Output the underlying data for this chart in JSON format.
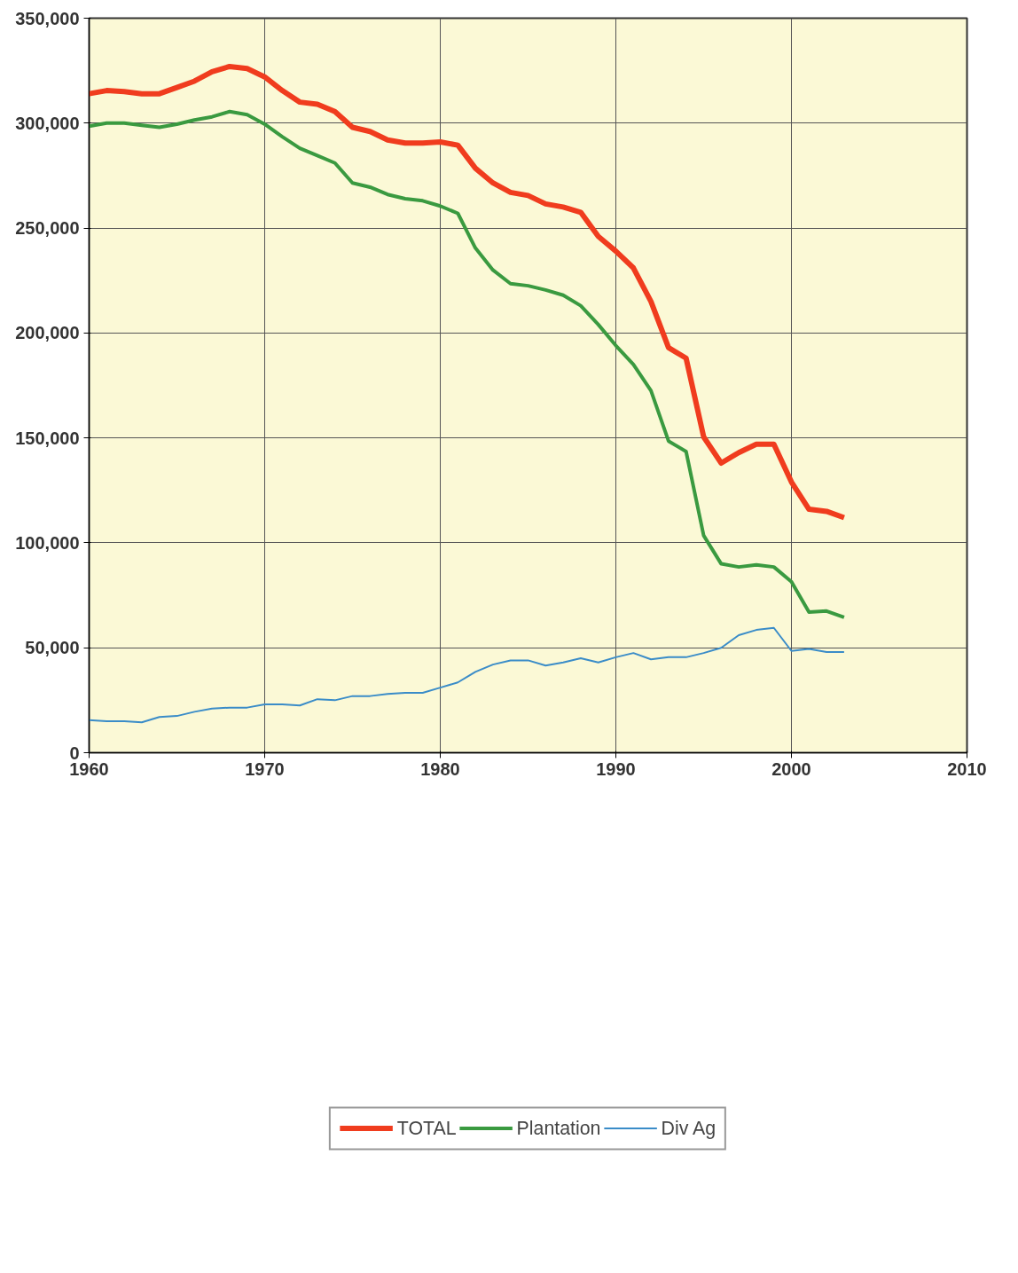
{
  "chart_data": {
    "type": "line",
    "x": [
      1960,
      1961,
      1962,
      1963,
      1964,
      1965,
      1966,
      1967,
      1968,
      1969,
      1970,
      1971,
      1972,
      1973,
      1974,
      1975,
      1976,
      1977,
      1978,
      1979,
      1980,
      1981,
      1982,
      1983,
      1984,
      1985,
      1986,
      1987,
      1988,
      1989,
      1990,
      1991,
      1992,
      1993,
      1994,
      1995,
      1996,
      1997,
      1998,
      1999,
      2000,
      2001,
      2002,
      2003
    ],
    "series": [
      {
        "name": "TOTAL",
        "color": "#f03c1e",
        "values": [
          314000,
          315500,
          315000,
          314000,
          314000,
          317000,
          320000,
          324500,
          327000,
          326000,
          322000,
          315500,
          310000,
          309000,
          305500,
          298000,
          296000,
          292000,
          290500,
          290500,
          291000,
          289500,
          278500,
          271500,
          267000,
          265500,
          261500,
          260000,
          257500,
          246000,
          239000,
          231000,
          215000,
          193000,
          188000,
          150500,
          138000,
          143000,
          147000,
          147000,
          129000,
          116000,
          115000,
          112000
        ]
      },
      {
        "name": "Plantation",
        "color": "#3a9a40",
        "values": [
          298500,
          300000,
          300000,
          299000,
          298000,
          299500,
          301500,
          303000,
          305500,
          304000,
          299500,
          293500,
          288000,
          284500,
          281000,
          271500,
          269500,
          266000,
          264000,
          263000,
          260500,
          257000,
          240500,
          230000,
          223500,
          222500,
          220500,
          218000,
          213000,
          204000,
          194000,
          185000,
          172500,
          148500,
          143500,
          103500,
          90000,
          88500,
          89500,
          88500,
          81500,
          67000,
          67500,
          64500
        ]
      },
      {
        "name": "Div Ag",
        "color": "#3a8cc8",
        "values": [
          15500,
          15000,
          15000,
          14500,
          17000,
          17500,
          19500,
          21000,
          21500,
          21500,
          23000,
          23000,
          22500,
          25500,
          25000,
          27000,
          27000,
          28000,
          28500,
          28500,
          31000,
          33500,
          38500,
          42000,
          44000,
          44000,
          41500,
          43000,
          45000,
          43000,
          45500,
          47500,
          44500,
          45500,
          45500,
          47500,
          50000,
          56000,
          58500,
          59500,
          48500,
          49500,
          48000,
          48000
        ]
      }
    ],
    "xlim": [
      1960,
      2010
    ],
    "xticks": [
      1960,
      1970,
      1980,
      1990,
      2000,
      2010
    ],
    "ylim": [
      0,
      350000
    ],
    "yticks": [
      0,
      {
        "value": 50000,
        "label": "50,000"
      },
      {
        "value": 100000,
        "label": "100,000"
      },
      {
        "value": 150000,
        "label": "150,000"
      },
      {
        "value": 200000,
        "label": "200,000"
      },
      {
        "value": 250000,
        "label": "250,000"
      },
      {
        "value": 300000,
        "label": "300,000"
      },
      {
        "value": 350000,
        "label": "350,000"
      }
    ],
    "grid": true,
    "legend": "bottom",
    "line_style": "solid"
  }
}
